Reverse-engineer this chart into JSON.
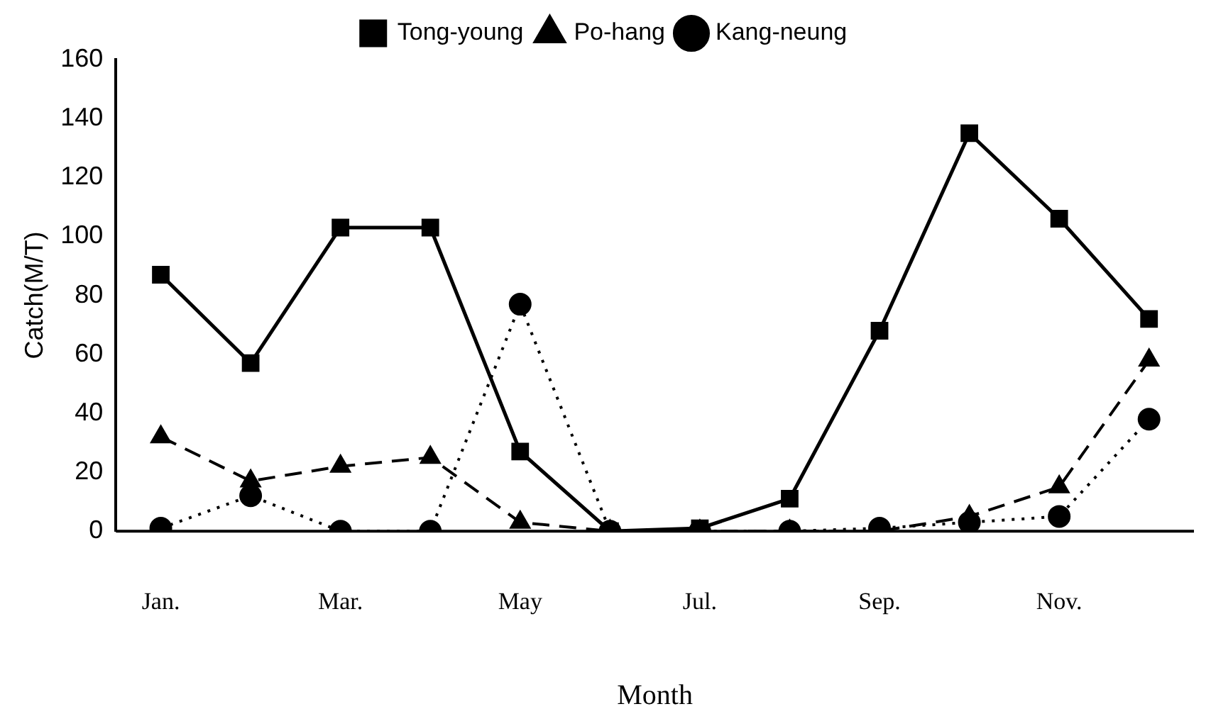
{
  "chart_data": {
    "type": "line",
    "xlabel": "Month",
    "ylabel": "Catch(M/T)",
    "categories": [
      "Jan.",
      null,
      "Mar.",
      null,
      "May",
      null,
      "Jul.",
      null,
      "Sep.",
      null,
      "Nov.",
      null
    ],
    "ylim": [
      0,
      160
    ],
    "yticks": [
      0,
      20,
      40,
      60,
      80,
      100,
      120,
      140,
      160
    ],
    "grid": false,
    "legend": "top",
    "series": [
      {
        "name": "Tong-young",
        "color": "#000000",
        "marker": "square",
        "line_style": "solid",
        "values": [
          87,
          57,
          103,
          103,
          27,
          0,
          1,
          11,
          68,
          135,
          106,
          72
        ]
      },
      {
        "name": "Po-hang",
        "color": "#000000",
        "marker": "triangle",
        "line_style": "dashed",
        "values": [
          32,
          17,
          22,
          25,
          3,
          0,
          0,
          0,
          0,
          5,
          15,
          58
        ]
      },
      {
        "name": "Kang-neung",
        "color": "#000000",
        "marker": "circle",
        "line_style": "dotted",
        "values": [
          1,
          12,
          0,
          0,
          77,
          0,
          0,
          0,
          1,
          3,
          5,
          38
        ]
      }
    ]
  }
}
